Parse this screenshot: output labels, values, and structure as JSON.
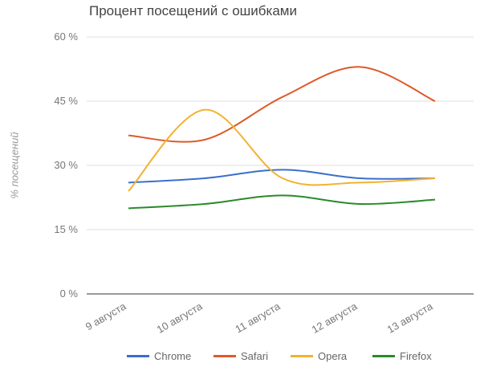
{
  "chart_data": {
    "type": "line",
    "title": "Процент посещений с ошибками",
    "xlabel": "",
    "ylabel": "% посещений",
    "categories": [
      "9 августа",
      "10 августа",
      "11 августа",
      "12 августа",
      "13 августа"
    ],
    "y_ticks": [
      "0 %",
      "15 %",
      "30 %",
      "45 %",
      "60 %"
    ],
    "ylim": [
      0,
      60
    ],
    "grid": true,
    "legend_position": "bottom",
    "series": [
      {
        "name": "Chrome",
        "color": "#3a6fcc",
        "values": [
          26,
          27,
          29,
          27,
          27
        ]
      },
      {
        "name": "Safari",
        "color": "#dd5a2a",
        "values": [
          37,
          36,
          46,
          53,
          45
        ]
      },
      {
        "name": "Opera",
        "color": "#f2b233",
        "values": [
          24,
          43,
          27,
          26,
          27
        ]
      },
      {
        "name": "Firefox",
        "color": "#2a8a2a",
        "values": [
          20,
          21,
          23,
          21,
          22
        ]
      }
    ]
  }
}
